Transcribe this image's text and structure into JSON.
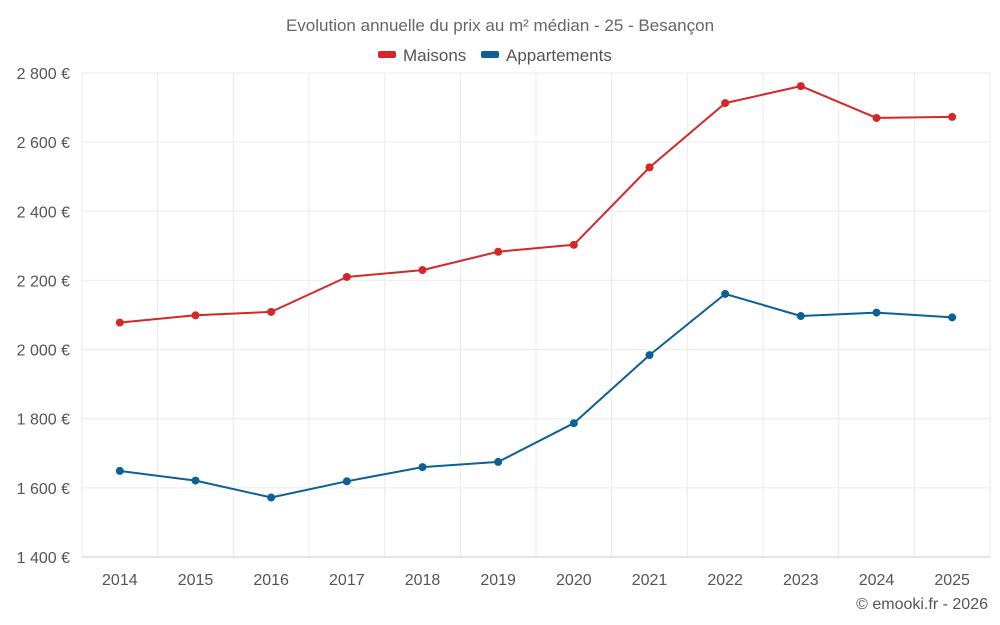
{
  "chart_data": {
    "type": "line",
    "title": "Evolution annuelle du prix au m² médian - 25 - Besançon",
    "categories": [
      "2014",
      "2015",
      "2016",
      "2017",
      "2018",
      "2019",
      "2020",
      "2021",
      "2022",
      "2023",
      "2024",
      "2025"
    ],
    "series": [
      {
        "name": "Maisons",
        "color": "#d62728",
        "values": [
          2078,
          2099,
          2109,
          2210,
          2230,
          2283,
          2303,
          2527,
          2713,
          2762,
          2670,
          2673
        ]
      },
      {
        "name": "Appartements",
        "color": "#0b6196",
        "values": [
          1649,
          1621,
          1572,
          1619,
          1660,
          1675,
          1787,
          1984,
          2161,
          2097,
          2107,
          2093
        ]
      }
    ],
    "ylim": [
      1400,
      2800
    ],
    "yticks": [
      1400,
      1600,
      1800,
      2000,
      2200,
      2400,
      2600,
      2800
    ],
    "ytick_labels": [
      "1 400 €",
      "1 600 €",
      "1 800 €",
      "2 000 €",
      "2 200 €",
      "2 400 €",
      "2 600 €",
      "2 800 €"
    ],
    "legend_position": "top-center",
    "grid": true
  },
  "credit": "© emooki.fr - 2026"
}
